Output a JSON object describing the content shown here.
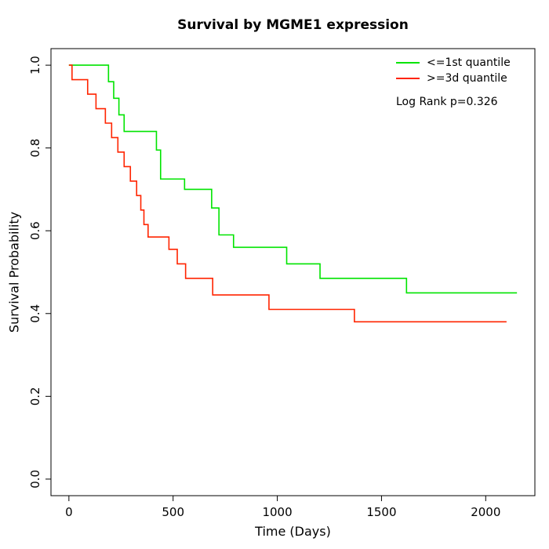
{
  "title": "Survival by MGME1 expression",
  "legend": {
    "items": [
      {
        "label": "<=1st quantile",
        "color": "#00e400"
      },
      {
        "label": ">=3d quantile",
        "color": "#ff2400"
      }
    ],
    "pvalue_text": "Log Rank p=0.326"
  },
  "chart_data": {
    "type": "line",
    "subtype": "kaplan-meier-step",
    "title": "Survival by MGME1 expression",
    "xlabel": "Time (Days)",
    "ylabel": "Survival Probability",
    "xlim": [
      0,
      2150
    ],
    "ylim": [
      0.0,
      1.0
    ],
    "x_ticks": [
      0,
      500,
      1000,
      1500,
      2000
    ],
    "y_ticks": [
      0.0,
      0.2,
      0.4,
      0.6,
      0.8,
      1.0
    ],
    "grid": false,
    "legend_position": "top-right",
    "annotation": "Log Rank p=0.326",
    "series": [
      {
        "name": "<=1st quantile",
        "color": "#00e400",
        "end_time": 2150,
        "steps": [
          [
            0,
            1.0
          ],
          [
            190,
            0.96
          ],
          [
            215,
            0.92
          ],
          [
            240,
            0.88
          ],
          [
            265,
            0.84
          ],
          [
            420,
            0.795
          ],
          [
            440,
            0.725
          ],
          [
            555,
            0.7
          ],
          [
            685,
            0.655
          ],
          [
            720,
            0.59
          ],
          [
            790,
            0.56
          ],
          [
            1045,
            0.52
          ],
          [
            1205,
            0.485
          ],
          [
            1620,
            0.45
          ]
        ]
      },
      {
        "name": ">=3d quantile",
        "color": "#ff2400",
        "end_time": 2100,
        "steps": [
          [
            0,
            1.0
          ],
          [
            15,
            0.965
          ],
          [
            90,
            0.93
          ],
          [
            130,
            0.895
          ],
          [
            175,
            0.86
          ],
          [
            205,
            0.825
          ],
          [
            235,
            0.79
          ],
          [
            265,
            0.755
          ],
          [
            295,
            0.72
          ],
          [
            325,
            0.685
          ],
          [
            345,
            0.65
          ],
          [
            360,
            0.615
          ],
          [
            380,
            0.585
          ],
          [
            480,
            0.555
          ],
          [
            520,
            0.52
          ],
          [
            560,
            0.485
          ],
          [
            690,
            0.445
          ],
          [
            960,
            0.41
          ],
          [
            1370,
            0.38
          ]
        ]
      }
    ]
  }
}
